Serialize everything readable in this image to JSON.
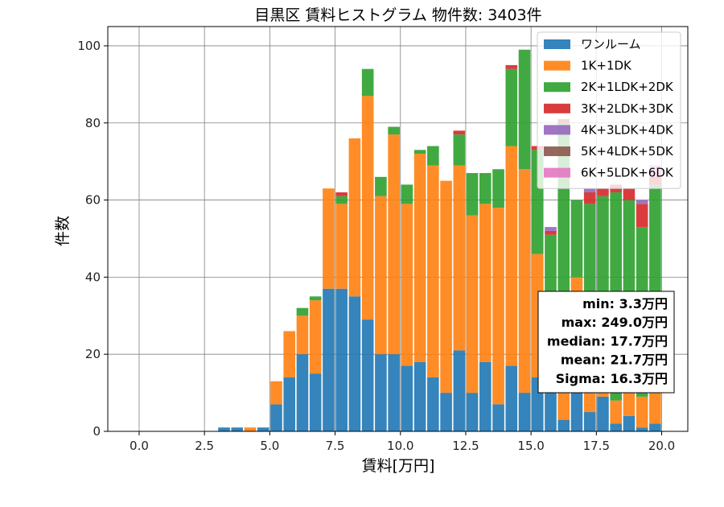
{
  "chart_data": {
    "type": "bar",
    "stacked": true,
    "title": "目黒区 賃料ヒストグラム  物件数: 3403件",
    "xlabel": "賃料[万円]",
    "ylabel": "件数",
    "xlim": [
      -1.2,
      21.0
    ],
    "ylim": [
      0,
      105
    ],
    "xticks": [
      0.0,
      2.5,
      5.0,
      7.5,
      10.0,
      12.5,
      15.0,
      17.5,
      20.0
    ],
    "xtick_labels": [
      "0.0",
      "2.5",
      "5.0",
      "7.5",
      "10.0",
      "12.5",
      "15.0",
      "17.5",
      "20.0"
    ],
    "yticks": [
      0,
      20,
      40,
      60,
      80,
      100
    ],
    "ytick_labels": [
      "0",
      "20",
      "40",
      "60",
      "80",
      "100"
    ],
    "grid": true,
    "legend_position": "top-right",
    "bin_width": 0.5,
    "bin_starts": [
      3.0,
      3.5,
      4.0,
      4.5,
      5.0,
      5.5,
      6.0,
      6.5,
      7.0,
      7.5,
      8.0,
      8.5,
      9.0,
      9.5,
      10.0,
      10.5,
      11.0,
      11.5,
      12.0,
      12.5,
      13.0,
      13.5,
      14.0,
      14.5,
      15.0,
      15.5,
      16.0,
      16.5,
      17.0,
      17.5,
      18.0,
      18.5,
      19.0,
      19.5
    ],
    "series": [
      {
        "name": "ワンルーム",
        "color": "#1f77b4",
        "values": [
          1,
          1,
          0,
          1,
          7,
          14,
          20,
          15,
          37,
          37,
          35,
          29,
          20,
          20,
          17,
          18,
          14,
          10,
          21,
          10,
          18,
          7,
          17,
          10,
          14,
          10,
          3,
          14,
          5,
          9,
          2,
          4,
          1,
          2
        ]
      },
      {
        "name": "1K+1DK",
        "color": "#ff7f0e",
        "values": [
          0,
          0,
          1,
          0,
          6,
          12,
          10,
          19,
          26,
          22,
          41,
          58,
          41,
          57,
          42,
          54,
          55,
          55,
          48,
          46,
          41,
          51,
          57,
          58,
          32,
          20,
          20,
          26,
          8,
          10,
          6,
          8,
          8,
          10
        ]
      },
      {
        "name": "2K+1LDK+2DK",
        "color": "#2ca02c",
        "values": [
          0,
          0,
          0,
          0,
          0,
          0,
          2,
          1,
          0,
          2,
          0,
          7,
          5,
          2,
          5,
          1,
          5,
          0,
          8,
          11,
          8,
          10,
          20,
          31,
          27,
          21,
          57,
          20,
          46,
          42,
          54,
          48,
          44,
          52
        ]
      },
      {
        "name": "3K+2LDK+3DK",
        "color": "#d62728",
        "values": [
          0,
          0,
          0,
          0,
          0,
          0,
          0,
          0,
          0,
          1,
          0,
          0,
          0,
          0,
          0,
          0,
          0,
          0,
          1,
          0,
          0,
          0,
          1,
          0,
          1,
          1,
          1,
          0,
          3,
          2,
          2,
          3,
          6,
          2
        ]
      },
      {
        "name": "4K+3LDK+4DK",
        "color": "#9467bd",
        "values": [
          0,
          0,
          0,
          0,
          0,
          0,
          0,
          0,
          0,
          0,
          0,
          0,
          0,
          0,
          0,
          0,
          0,
          0,
          0,
          0,
          0,
          0,
          0,
          0,
          0,
          1,
          0,
          0,
          1,
          0,
          0,
          0,
          1,
          0
        ]
      },
      {
        "name": "5K+4LDK+5DK",
        "color": "#8c564b",
        "values": [
          0,
          0,
          0,
          0,
          0,
          0,
          0,
          0,
          0,
          0,
          0,
          0,
          0,
          0,
          0,
          0,
          0,
          0,
          0,
          0,
          0,
          0,
          0,
          0,
          0,
          0,
          0,
          0,
          0,
          0,
          0,
          0,
          0,
          0
        ]
      },
      {
        "name": "6K+5LDK+6DK",
        "color": "#e377c2",
        "values": [
          0,
          0,
          0,
          0,
          0,
          0,
          0,
          0,
          0,
          0,
          0,
          0,
          0,
          0,
          0,
          0,
          0,
          0,
          0,
          0,
          0,
          0,
          0,
          0,
          0,
          0,
          0,
          0,
          0,
          0,
          0,
          0,
          0,
          3
        ]
      }
    ],
    "stats": [
      "min: 3.3万円",
      "max: 249.0万円",
      "median: 17.7万円",
      "mean: 21.7万円",
      "Sigma: 16.3万円"
    ]
  }
}
